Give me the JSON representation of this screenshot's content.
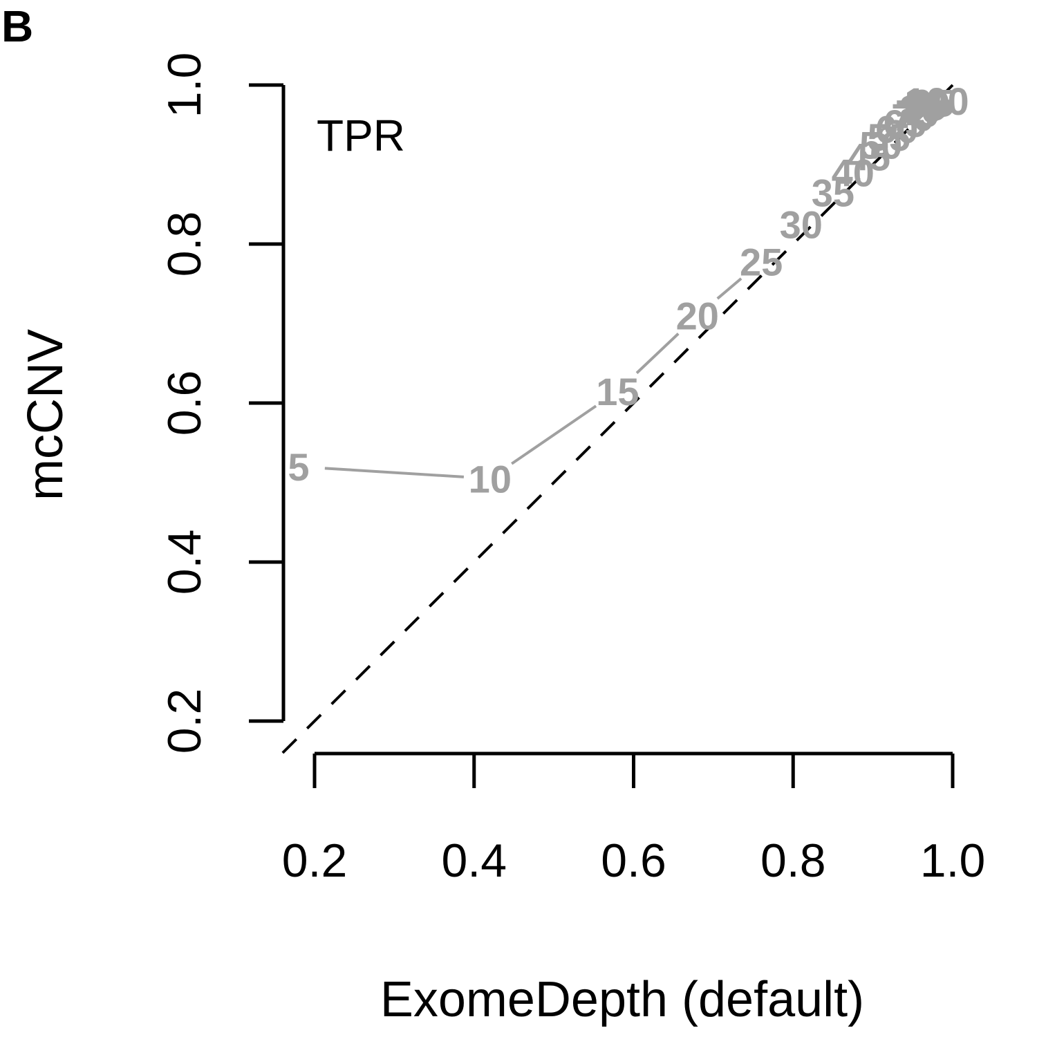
{
  "panel_label": "B",
  "chart_data": {
    "type": "line",
    "xlabel": "ExomeDepth (default)",
    "ylabel": "mcCNV",
    "annotation": "TPR",
    "xlim": [
      0.2,
      1.0
    ],
    "ylim": [
      0.2,
      1.0
    ],
    "xticks": [
      "0.2",
      "0.4",
      "0.6",
      "0.8",
      "1.0"
    ],
    "yticks": [
      "0.2",
      "0.4",
      "0.6",
      "0.8",
      "1.0"
    ],
    "reference_line": "y = x (dashed)",
    "series": [
      {
        "color": "#a0a0a0",
        "points": [
          {
            "label": "5",
            "x": 0.18,
            "y": 0.52
          },
          {
            "label": "10",
            "x": 0.42,
            "y": 0.505
          },
          {
            "label": "15",
            "x": 0.58,
            "y": 0.615
          },
          {
            "label": "20",
            "x": 0.68,
            "y": 0.71
          },
          {
            "label": "25",
            "x": 0.76,
            "y": 0.778
          },
          {
            "label": "30",
            "x": 0.81,
            "y": 0.825
          },
          {
            "label": "35",
            "x": 0.85,
            "y": 0.865
          },
          {
            "label": "40",
            "x": 0.875,
            "y": 0.89
          },
          {
            "label": "45",
            "x": 0.895,
            "y": 0.91
          },
          {
            "label": "50",
            "x": 0.91,
            "y": 0.925
          },
          {
            "label": "55",
            "x": 0.92,
            "y": 0.935
          },
          {
            "label": "60",
            "x": 0.93,
            "y": 0.945
          },
          {
            "label": "65",
            "x": 0.94,
            "y": 0.952
          },
          {
            "label": "70",
            "x": 0.95,
            "y": 0.96
          },
          {
            "label": "75",
            "x": 0.955,
            "y": 0.965
          },
          {
            "label": "80",
            "x": 0.96,
            "y": 0.97
          },
          {
            "label": "85",
            "x": 0.965,
            "y": 0.973
          },
          {
            "label": "90",
            "x": 0.97,
            "y": 0.976
          },
          {
            "label": "95",
            "x": 0.975,
            "y": 0.978
          },
          {
            "label": "100",
            "x": 0.98,
            "y": 0.98
          }
        ]
      }
    ]
  }
}
